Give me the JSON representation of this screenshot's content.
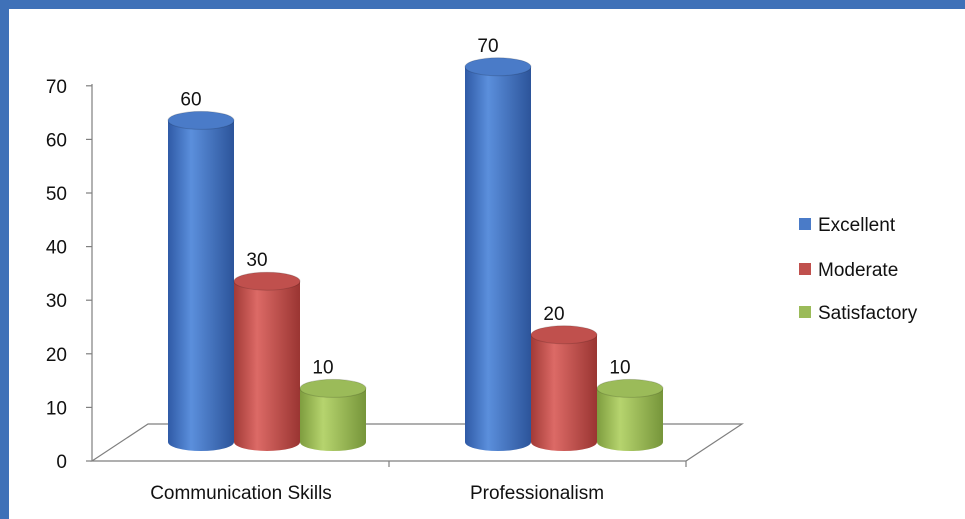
{
  "chart_data": {
    "type": "bar",
    "style": "3d-cylinder",
    "categories": [
      "Communication Skills",
      "Professionalism"
    ],
    "series": [
      {
        "name": "Excellent",
        "values": [
          60,
          70
        ],
        "color": "#4a7bc8"
      },
      {
        "name": "Moderate",
        "values": [
          30,
          20
        ],
        "color": "#c0504d"
      },
      {
        "name": "Satisfactory",
        "values": [
          10,
          10
        ],
        "color": "#9bbb59"
      }
    ],
    "data_labels": true,
    "ylim": [
      0,
      70
    ],
    "yticks": [
      "0",
      "10",
      "20",
      "30",
      "40",
      "50",
      "60",
      "70"
    ],
    "grid": false,
    "legend": "right",
    "title": "",
    "xlabel": "",
    "ylabel": ""
  }
}
